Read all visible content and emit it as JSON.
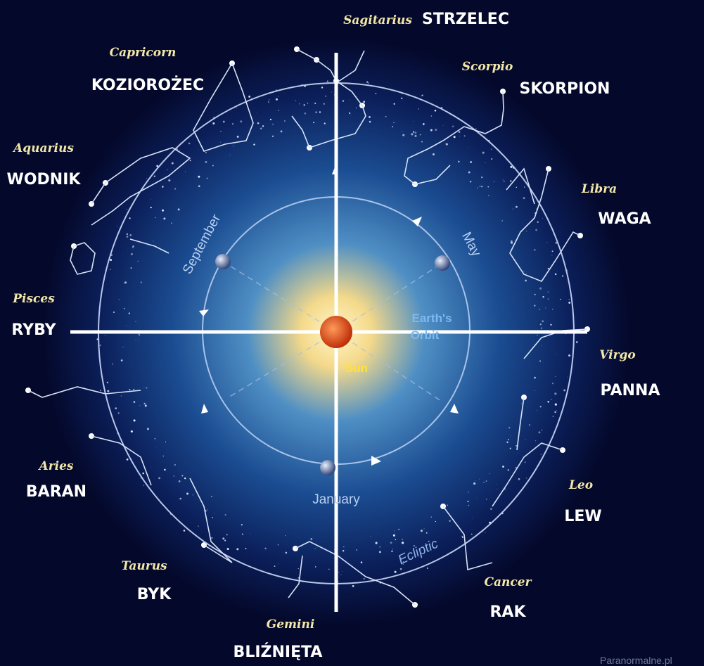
{
  "constellations": [
    {
      "name": "Sagitarius",
      "local_name": "STRZELEC"
    },
    {
      "name": "Capricorn",
      "local_name": "KOZIOROŻEC"
    },
    {
      "name": "Scorpio",
      "local_name": "SKORPION"
    },
    {
      "name": "Aquarius",
      "local_name": "WODNIK"
    },
    {
      "name": "Libra",
      "local_name": "WAGA"
    },
    {
      "name": "Pisces",
      "local_name": "RYBY"
    },
    {
      "name": "Virgo",
      "local_name": "PANNA"
    },
    {
      "name": "Aries",
      "local_name": "BARAN"
    },
    {
      "name": "Leo",
      "local_name": "LEW"
    },
    {
      "name": "Taurus",
      "local_name": "BYK"
    },
    {
      "name": "Cancer",
      "local_name": "RAK"
    },
    {
      "name": "Gemini",
      "local_name": "BLIŹNIĘTA"
    }
  ],
  "months": [
    "September",
    "May",
    "January"
  ],
  "orbit_label": [
    "Earth's",
    "Orbit"
  ],
  "sun_label": "Sun",
  "ecliptic_label": "Ecliptic",
  "watermark": "Paranormalne.pl"
}
